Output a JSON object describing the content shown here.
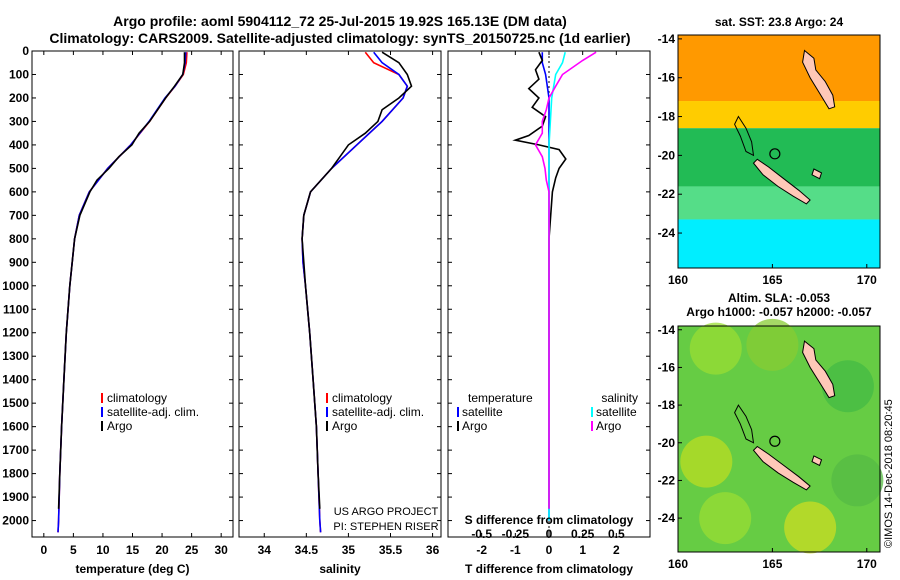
{
  "header": {
    "line1": "Argo profile: aoml 5904112_72 25-Jul-2015 19.92S 165.13E (DM data)",
    "line2": "Climatology: CARS2009. Satellite-adjusted climatology: synTS_20150725.nc (1d earlier)"
  },
  "colors": {
    "climatology": "#ff0000",
    "satellite": "#0000ff",
    "argo": "#000000",
    "s_satellite": "#00ffff",
    "s_argo": "#ff00ff"
  },
  "depth_ticks": [
    "0",
    "100",
    "200",
    "300",
    "400",
    "500",
    "600",
    "700",
    "800",
    "900",
    "1000",
    "1100",
    "1200",
    "1300",
    "1400",
    "1500",
    "1600",
    "1700",
    "1800",
    "1900",
    "2000"
  ],
  "chart_data": [
    {
      "type": "line",
      "xlabel": "temperature (deg C)",
      "ylabel": "",
      "xlim": [
        -2,
        32
      ],
      "ylim": [
        2070,
        0
      ],
      "xticks": [
        "0",
        "5",
        "10",
        "15",
        "20",
        "25",
        "30"
      ],
      "legend": [
        "climatology",
        "satellite-adj. clim.",
        "Argo"
      ],
      "series": [
        {
          "name": "climatology",
          "depth": [
            5,
            50,
            100,
            150,
            200,
            300,
            400,
            500,
            600,
            700,
            800,
            1000,
            1200,
            1400,
            1600,
            1800,
            2000,
            2050
          ],
          "values": [
            24.2,
            24.1,
            23.6,
            22.2,
            20.6,
            17.9,
            14.7,
            10.8,
            7.7,
            6.0,
            5.2,
            4.4,
            3.8,
            3.4,
            3.0,
            2.7,
            2.5,
            2.4
          ]
        },
        {
          "name": "satellite-adj. clim.",
          "depth": [
            5,
            50,
            100,
            150,
            200,
            300,
            400,
            500,
            600,
            700,
            800,
            1000,
            1200,
            1400,
            1600,
            1800,
            2000,
            2050
          ],
          "values": [
            24.0,
            23.9,
            23.5,
            22.2,
            20.5,
            17.8,
            14.7,
            10.8,
            7.7,
            6.0,
            5.2,
            4.4,
            3.8,
            3.4,
            3.0,
            2.7,
            2.5,
            2.4
          ]
        },
        {
          "name": "Argo",
          "depth": [
            5,
            50,
            100,
            150,
            200,
            300,
            350,
            400,
            450,
            500,
            550,
            600,
            700,
            800,
            1000,
            1200,
            1400,
            1600,
            1800,
            1950
          ],
          "values": [
            23.8,
            23.8,
            23.5,
            22.1,
            20.6,
            17.9,
            16.1,
            14.9,
            12.7,
            11.0,
            9.0,
            7.8,
            6.1,
            5.2,
            4.4,
            3.8,
            3.4,
            3.0,
            2.7,
            2.5
          ]
        }
      ]
    },
    {
      "type": "line",
      "xlabel": "salinity",
      "ylabel": "",
      "xlim": [
        33.7,
        36.1
      ],
      "ylim": [
        2070,
        0
      ],
      "xticks": [
        "34",
        "34.5",
        "35",
        "35.5",
        "36"
      ],
      "legend": [
        "climatology",
        "satellite-adj. clim.",
        "Argo"
      ],
      "series": [
        {
          "name": "climatology",
          "depth": [
            5,
            50,
            100,
            150,
            200,
            300,
            400,
            500,
            600,
            700,
            800,
            900,
            1000,
            1200,
            1400,
            1600,
            1800,
            2000,
            2050
          ],
          "values": [
            35.2,
            35.3,
            35.6,
            35.7,
            35.65,
            35.4,
            35.1,
            34.8,
            34.55,
            34.47,
            34.45,
            34.46,
            34.49,
            34.54,
            34.58,
            34.62,
            34.64,
            34.66,
            34.67
          ]
        },
        {
          "name": "satellite-adj. clim.",
          "depth": [
            5,
            50,
            100,
            150,
            200,
            300,
            400,
            500,
            600,
            700,
            800,
            900,
            1000,
            1200,
            1400,
            1600,
            1800,
            2000,
            2050
          ],
          "values": [
            35.3,
            35.4,
            35.6,
            35.7,
            35.65,
            35.4,
            35.1,
            34.8,
            34.55,
            34.47,
            34.45,
            34.46,
            34.49,
            34.54,
            34.58,
            34.62,
            34.64,
            34.66,
            34.67
          ]
        },
        {
          "name": "Argo",
          "depth": [
            5,
            50,
            100,
            150,
            200,
            250,
            300,
            350,
            400,
            450,
            500,
            600,
            700,
            800,
            1000,
            1200,
            1400,
            1600,
            1800,
            1950
          ],
          "values": [
            35.4,
            35.6,
            35.7,
            35.75,
            35.6,
            35.4,
            35.35,
            35.2,
            35.0,
            34.9,
            34.8,
            34.55,
            34.47,
            34.45,
            34.49,
            34.54,
            34.58,
            34.62,
            34.64,
            34.66
          ]
        }
      ]
    },
    {
      "type": "line",
      "xlabel": "T difference from climatology",
      "ylabel": "",
      "xlim": [
        -3,
        3
      ],
      "ylim": [
        2070,
        0
      ],
      "xticks": [
        "-2",
        "-1",
        "0",
        "1",
        "2"
      ],
      "top_xlabel": "S difference from climatology",
      "top_xticks": [
        "-0.5",
        "-0.25",
        "0",
        "0.25",
        "0.5"
      ],
      "legend_left_title": "temperature",
      "legend_right_title": "salinity",
      "legend": [
        "satellite",
        "Argo",
        "satellite",
        "Argo"
      ],
      "series": [
        {
          "name": "satellite",
          "quantity": "temperature",
          "depth": [
            5,
            50,
            100,
            200,
            400,
            600,
            1000,
            1500,
            2000
          ],
          "values": [
            -0.2,
            -0.2,
            -0.1,
            0,
            0,
            0,
            0,
            0,
            0
          ]
        },
        {
          "name": "Argo",
          "quantity": "temperature",
          "depth": [
            5,
            40,
            80,
            120,
            160,
            200,
            240,
            280,
            320,
            360,
            380,
            400,
            420,
            460,
            500,
            540,
            600,
            700,
            800,
            1000,
            1400,
            1800,
            1950
          ],
          "values": [
            -0.3,
            -0.2,
            -0.4,
            -0.3,
            -0.6,
            -0.3,
            -0.5,
            -0.1,
            -0.2,
            -0.6,
            -1.0,
            -0.3,
            0.3,
            0.5,
            0.3,
            0.2,
            0.1,
            0.05,
            0.0,
            0.0,
            0.0,
            0.0,
            0.0
          ]
        },
        {
          "name": "satellite",
          "quantity": "salinity",
          "depth": [
            5,
            50,
            100,
            200,
            400,
            600,
            1000,
            1500,
            2000
          ],
          "values": [
            0.12,
            0.1,
            0.05,
            0.02,
            0,
            0,
            0,
            0,
            0
          ]
        },
        {
          "name": "Argo",
          "quantity": "salinity",
          "depth": [
            5,
            40,
            100,
            150,
            200,
            250,
            300,
            350,
            400,
            450,
            500,
            550,
            600,
            800,
            1000,
            1400,
            1800,
            1950
          ],
          "values": [
            0.35,
            0.25,
            0.1,
            0.05,
            0.0,
            -0.02,
            -0.05,
            -0.05,
            -0.1,
            -0.05,
            -0.03,
            -0.02,
            0,
            0,
            0,
            0,
            0,
            0
          ]
        }
      ]
    },
    {
      "type": "heatmap",
      "title": "sat. SST: 23.8 Argo: 24",
      "xlim": [
        160,
        170.7
      ],
      "ylim": [
        -25.8,
        -13.8
      ],
      "xticks": [
        "160",
        "165",
        "170"
      ],
      "yticks": [
        "-14",
        "-16",
        "-18",
        "-20",
        "-22",
        "-24"
      ],
      "bands": [
        {
          "lat_from": -13.8,
          "lat_to": -17.2,
          "color": "#ff9900"
        },
        {
          "lat_from": -17.2,
          "lat_to": -18.6,
          "color": "#ffcc00"
        },
        {
          "lat_from": -18.6,
          "lat_to": -21.6,
          "color": "#22bb55"
        },
        {
          "lat_from": -21.6,
          "lat_to": -23.3,
          "color": "#55dd88"
        },
        {
          "lat_from": -23.3,
          "lat_to": -25.8,
          "color": "#00eeff"
        }
      ],
      "profile_location": {
        "lon": 165.13,
        "lat": -19.92
      }
    },
    {
      "type": "heatmap",
      "title": "Altim. SLA: -0.053",
      "subtitle": "Argo h1000: -0.057 h2000: -0.057",
      "xlim": [
        160,
        170.7
      ],
      "ylim": [
        -25.8,
        -13.8
      ],
      "xticks": [
        "160",
        "165",
        "170"
      ],
      "yticks": [
        "-14",
        "-16",
        "-18",
        "-20",
        "-22",
        "-24"
      ],
      "base_color": "#66cc44",
      "profile_location": {
        "lon": 165.13,
        "lat": -19.92
      }
    }
  ],
  "credits": {
    "project": "US ARGO PROJECT",
    "pi": "PI: STEPHEN RISER",
    "stamp": "©IMOS 14-Dec-2018 08:20:45"
  }
}
